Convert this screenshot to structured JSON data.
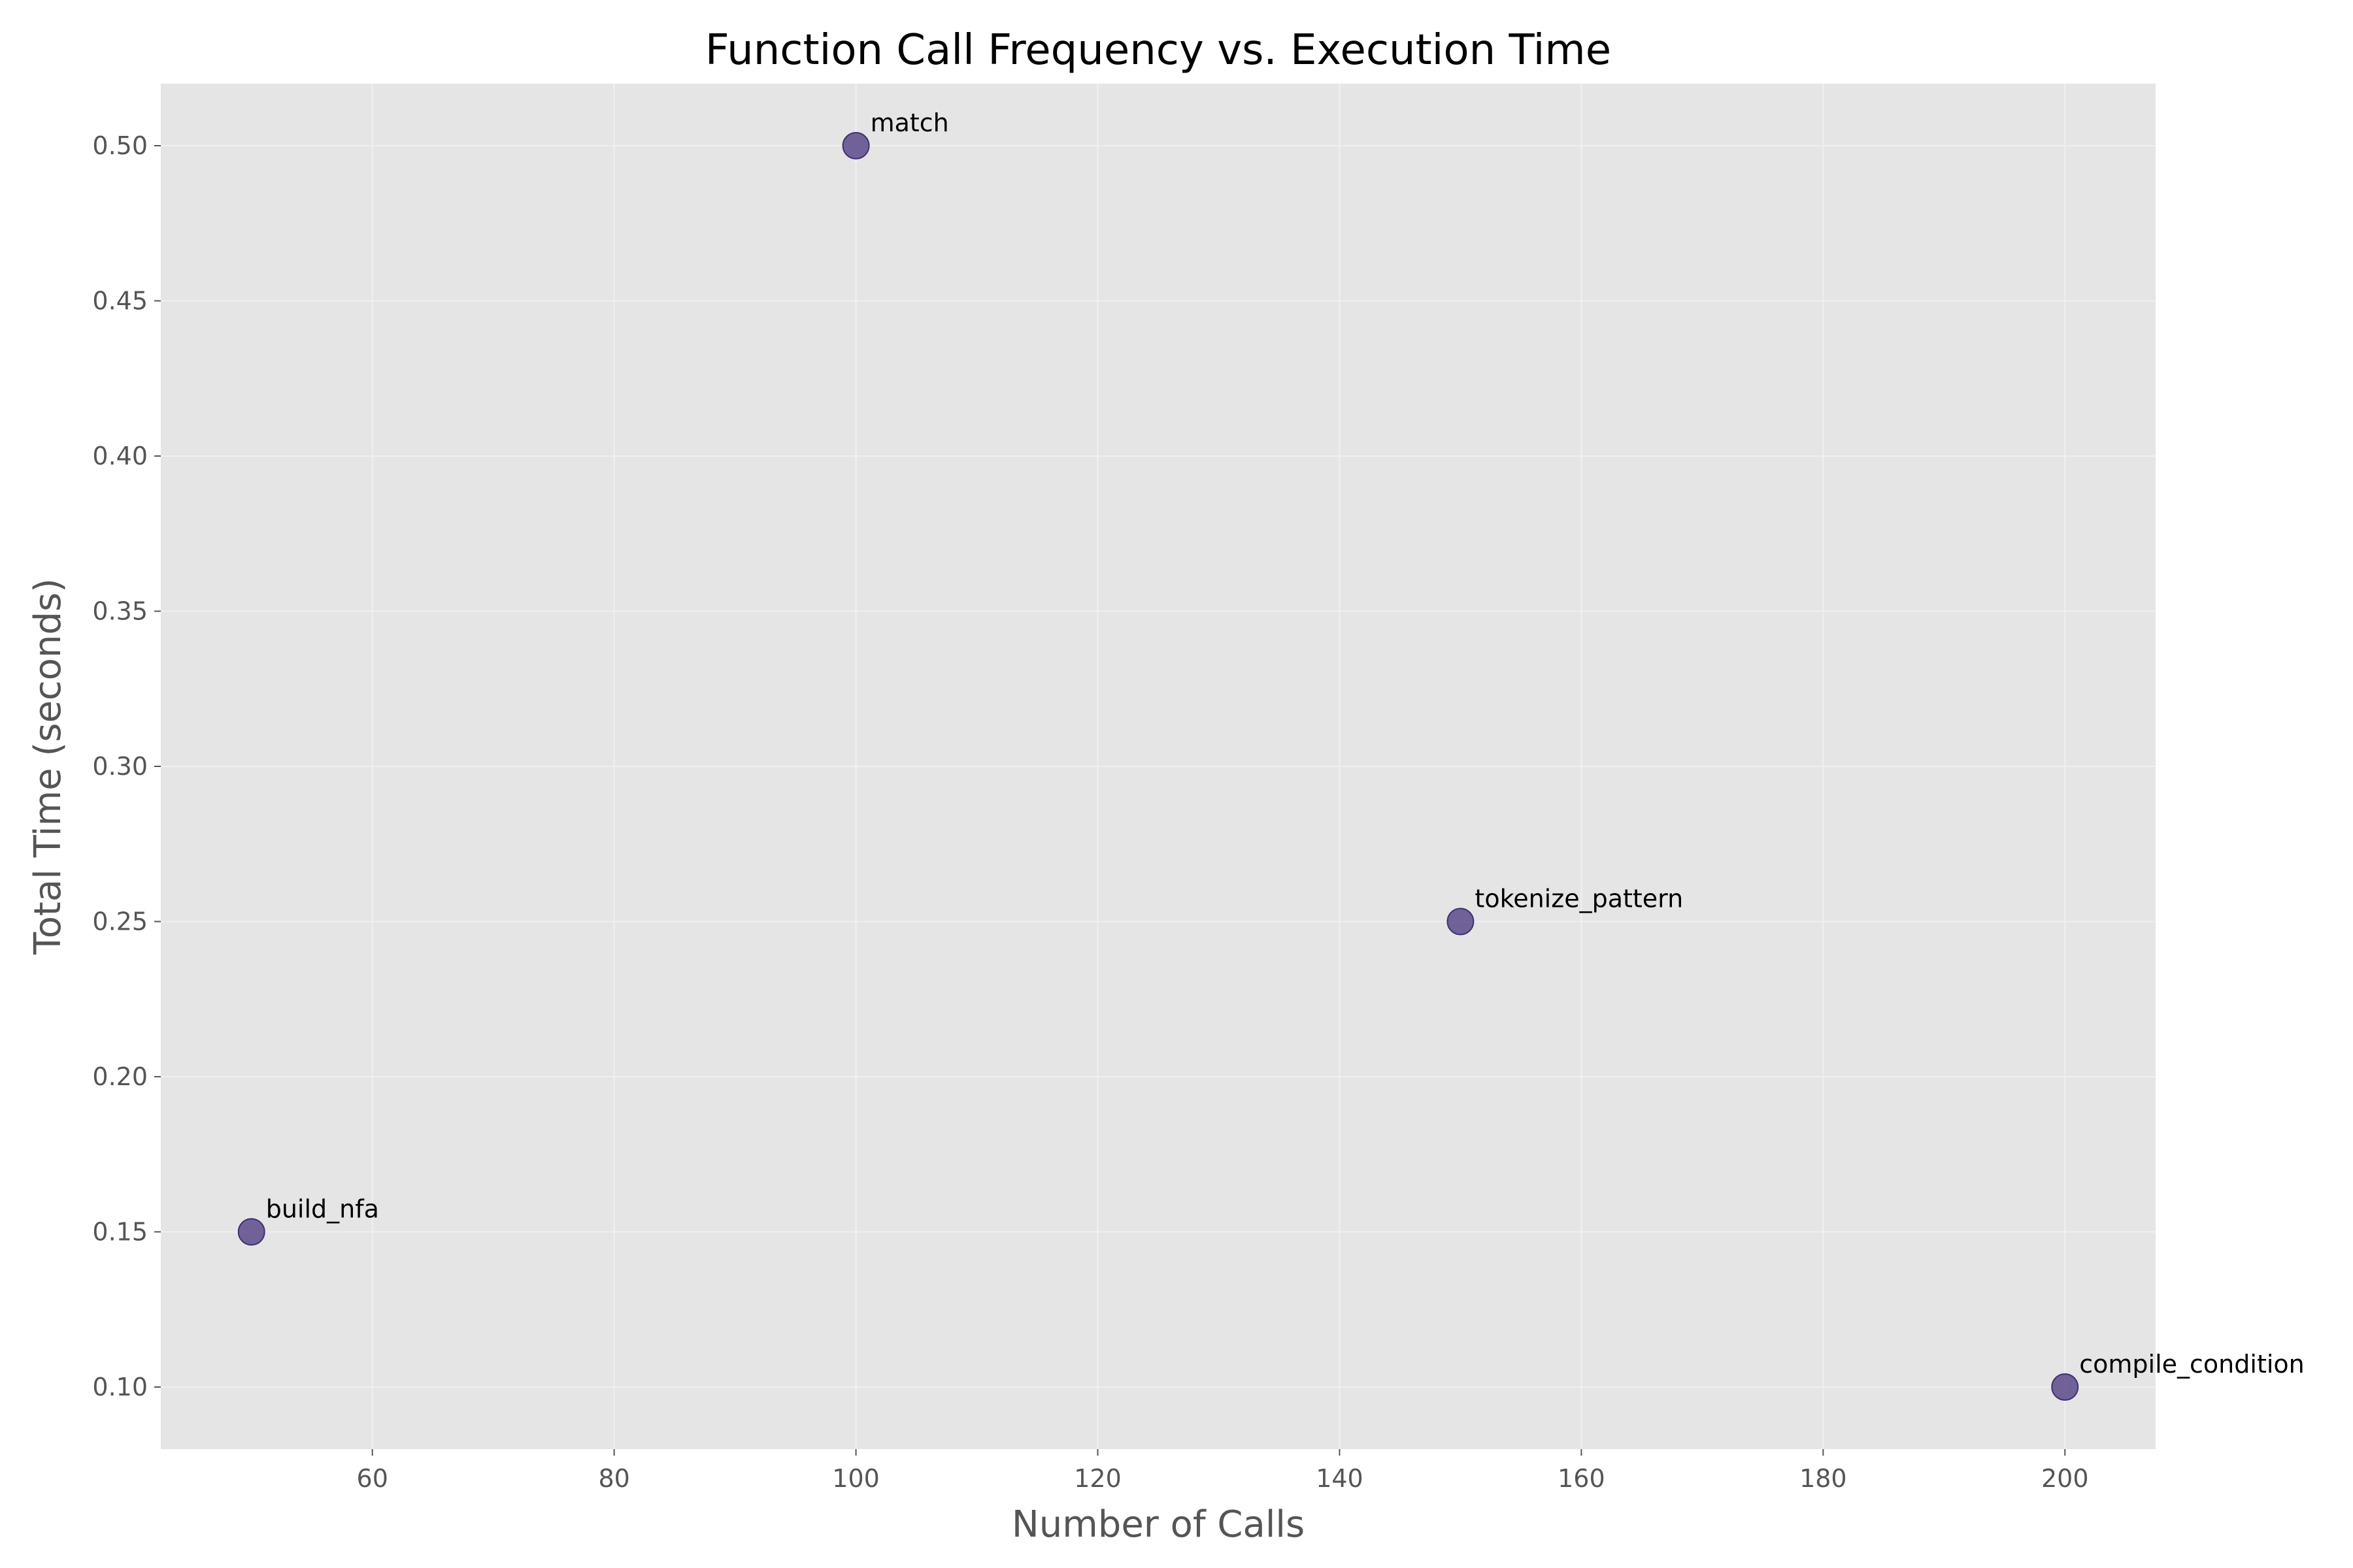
{
  "chart_data": {
    "type": "scatter",
    "title": "Function Call Frequency vs. Execution Time",
    "xlabel": "Number of Calls",
    "ylabel": "Total Time (seconds)",
    "xlim": [
      42.5,
      207.5
    ],
    "ylim": [
      0.08,
      0.52
    ],
    "xticks": [
      60,
      80,
      100,
      120,
      140,
      160,
      180,
      200
    ],
    "yticks": [
      0.1,
      0.15,
      0.2,
      0.25,
      0.3,
      0.35,
      0.4,
      0.45,
      0.5
    ],
    "grid": true,
    "legend": "none",
    "colors": {
      "plot_background": "#e5e5e5",
      "grid": "#f0f0f0",
      "marker_fill": "#5c4a8c",
      "marker_edge": "#3f3170"
    },
    "series": [
      {
        "points": [
          {
            "label": "build_nfa",
            "x": 50,
            "y": 0.15
          },
          {
            "label": "match",
            "x": 100,
            "y": 0.5
          },
          {
            "label": "tokenize_pattern",
            "x": 150,
            "y": 0.25
          },
          {
            "label": "compile_condition",
            "x": 200,
            "y": 0.1
          }
        ]
      }
    ]
  }
}
